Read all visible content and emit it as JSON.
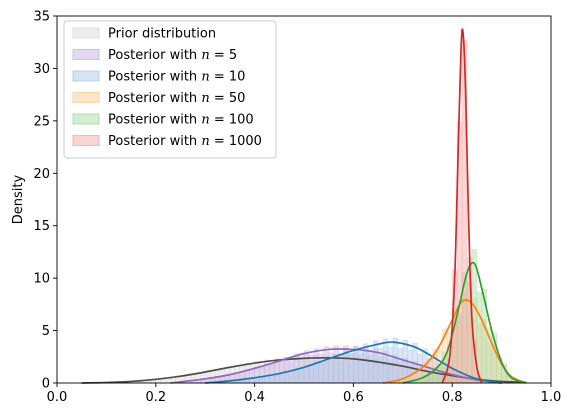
{
  "chart_data": {
    "type": "area",
    "title": "",
    "xlabel": "",
    "ylabel": "Density",
    "xlim": [
      0.0,
      1.0
    ],
    "ylim": [
      0,
      35
    ],
    "xticks": [
      "0.0",
      "0.2",
      "0.4",
      "0.6",
      "0.8",
      "1.0"
    ],
    "yticks": [
      "0",
      "5",
      "10",
      "15",
      "20",
      "25",
      "30",
      "35"
    ],
    "grid": false,
    "legend_position": "top-left",
    "series": [
      {
        "name": "Prior distribution",
        "line_color": "#4d4d4d",
        "fill_color": "#d9d9d9",
        "kde_x": [
          0.05,
          0.1,
          0.15,
          0.2,
          0.25,
          0.3,
          0.35,
          0.4,
          0.45,
          0.5,
          0.55,
          0.6,
          0.65,
          0.7,
          0.75,
          0.8,
          0.85,
          0.9,
          0.95
        ],
        "kde_y": [
          0.0,
          0.05,
          0.15,
          0.35,
          0.65,
          1.05,
          1.5,
          1.9,
          2.2,
          2.35,
          2.4,
          2.3,
          2.0,
          1.6,
          1.1,
          0.7,
          0.35,
          0.15,
          0.05
        ]
      },
      {
        "name": "Posterior with $n = 5$",
        "label_prefix": "Posterior with ",
        "label_n": "5",
        "line_color": "#9467bd",
        "fill_color": "#c9b3e0",
        "kde_x": [
          0.23,
          0.3,
          0.35,
          0.4,
          0.45,
          0.5,
          0.55,
          0.6,
          0.65,
          0.7,
          0.75,
          0.8,
          0.85,
          0.9
        ],
        "kde_y": [
          0.0,
          0.4,
          0.8,
          1.4,
          2.1,
          2.8,
          3.2,
          3.2,
          2.9,
          2.2,
          1.5,
          0.8,
          0.3,
          0.0
        ]
      },
      {
        "name": "Posterior with $n = 10$",
        "label_prefix": "Posterior with ",
        "label_n": "10",
        "line_color": "#1f77b4",
        "fill_color": "#aec7e8",
        "kde_x": [
          0.3,
          0.35,
          0.4,
          0.45,
          0.5,
          0.55,
          0.6,
          0.65,
          0.68,
          0.72,
          0.75,
          0.8,
          0.85,
          0.9
        ],
        "kde_y": [
          0.0,
          0.2,
          0.5,
          0.9,
          1.5,
          2.3,
          3.1,
          3.7,
          3.9,
          3.5,
          2.8,
          1.4,
          0.4,
          0.0
        ]
      },
      {
        "name": "Posterior with $n = 50$",
        "label_prefix": "Posterior with ",
        "label_n": "50",
        "line_color": "#ff7f0e",
        "fill_color": "#ffcc99",
        "kde_x": [
          0.66,
          0.7,
          0.74,
          0.77,
          0.8,
          0.82,
          0.84,
          0.86,
          0.88,
          0.9,
          0.92,
          0.95
        ],
        "kde_y": [
          0.0,
          0.4,
          1.5,
          3.2,
          6.0,
          7.8,
          7.6,
          6.0,
          3.8,
          1.8,
          0.6,
          0.0
        ]
      },
      {
        "name": "Posterior with $n = 100$",
        "label_prefix": "Posterior with ",
        "label_n": "100",
        "line_color": "#2ca02c",
        "fill_color": "#a6dba0",
        "kde_x": [
          0.7,
          0.74,
          0.77,
          0.79,
          0.81,
          0.83,
          0.845,
          0.86,
          0.88,
          0.9,
          0.92,
          0.95
        ],
        "kde_y": [
          0.0,
          0.5,
          1.5,
          3.0,
          6.5,
          10.5,
          11.4,
          9.0,
          5.0,
          2.0,
          0.5,
          0.0
        ]
      },
      {
        "name": "Posterior with $n = 1000$",
        "label_prefix": "Posterior with ",
        "label_n": "1000",
        "line_color": "#d62728",
        "fill_color": "#f4a9a8",
        "kde_x": [
          0.78,
          0.795,
          0.805,
          0.812,
          0.818,
          0.822,
          0.827,
          0.833,
          0.84,
          0.85,
          0.86
        ],
        "kde_y": [
          0.0,
          2.5,
          10.0,
          22.0,
          32.0,
          33.4,
          28.0,
          16.0,
          6.0,
          1.5,
          0.0
        ]
      }
    ]
  }
}
